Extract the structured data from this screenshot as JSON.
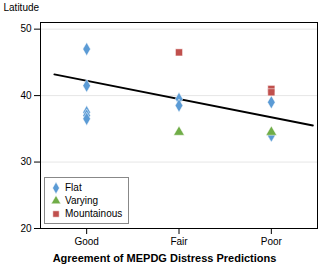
{
  "chart_data": {
    "type": "scatter",
    "xlabel": "Agreement of MEPDG Distress Predictions",
    "ylabel": "Latitude",
    "xlim": [
      0.5,
      3.5
    ],
    "xticks": [
      {
        "value": 1,
        "label": "Good"
      },
      {
        "value": 2,
        "label": "Fair"
      },
      {
        "value": 3,
        "label": "Poor"
      }
    ],
    "ylim": [
      20,
      51
    ],
    "yticks": [
      20,
      30,
      40,
      50
    ],
    "grid": true,
    "legend": "lower left",
    "series": [
      {
        "name": "Flat",
        "color": "#5B9BD5",
        "marker": "diamond",
        "x": [
          1,
          1,
          1,
          1,
          1,
          2,
          2,
          3,
          3,
          3
        ],
        "values": [
          47,
          41.5,
          37.5,
          37,
          36.5,
          39.5,
          38.5,
          39,
          34,
          34
        ]
      },
      {
        "name": "Varying",
        "color": "#70AD47",
        "marker": "triangle",
        "x": [
          2,
          3
        ],
        "values": [
          34.5,
          34.5
        ]
      },
      {
        "name": "Mountainous",
        "color": "#C0504D",
        "marker": "square",
        "x": [
          2,
          3,
          3
        ],
        "values": [
          46.5,
          41,
          40.5
        ]
      }
    ],
    "trend_line": {
      "x": [
        0.65,
        3.45
      ],
      "values": [
        43.2,
        35.5
      ],
      "color": "#000000"
    }
  }
}
